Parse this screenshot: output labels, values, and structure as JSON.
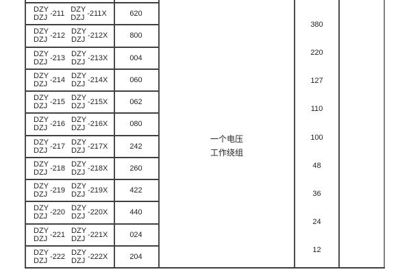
{
  "page": {
    "background_color": "#ffffff",
    "text_color": "#1f1f1f",
    "border_color": "#4a4a4a",
    "dark_rule_color": "#3c3c3c"
  },
  "table": {
    "model_rows": [
      {
        "brand_top": "DZY",
        "brand_bottom": "DZJ",
        "code": "-211",
        "code_x": "-211X",
        "value": "620"
      },
      {
        "brand_top": "DZY",
        "brand_bottom": "DZJ",
        "code": "-212",
        "code_x": "-212X",
        "value": "800"
      },
      {
        "brand_top": "DZY",
        "brand_bottom": "DZJ",
        "code": "-213",
        "code_x": "-213X",
        "value": "004"
      },
      {
        "brand_top": "DZY",
        "brand_bottom": "DZJ",
        "code": "-214",
        "code_x": "-214X",
        "value": "060"
      },
      {
        "brand_top": "DZY",
        "brand_bottom": "DZJ",
        "code": "-215",
        "code_x": "-215X",
        "value": "062"
      },
      {
        "brand_top": "DZY",
        "brand_bottom": "DZJ",
        "code": "-216",
        "code_x": "-216X",
        "value": "080"
      },
      {
        "brand_top": "DZY",
        "brand_bottom": "DZJ",
        "code": "-217",
        "code_x": "-217X",
        "value": "242"
      },
      {
        "brand_top": "DZY",
        "brand_bottom": "DZJ",
        "code": "-218",
        "code_x": "-218X",
        "value": "260"
      },
      {
        "brand_top": "DZY",
        "brand_bottom": "DZJ",
        "code": "-219",
        "code_x": "-219X",
        "value": "422"
      },
      {
        "brand_top": "DZY",
        "brand_bottom": "DZJ",
        "code": "-220",
        "code_x": "-220X",
        "value": "440"
      },
      {
        "brand_top": "DZY",
        "brand_bottom": "DZJ",
        "code": "-221",
        "code_x": "-221X",
        "value": "024"
      },
      {
        "brand_top": "DZY",
        "brand_bottom": "DZJ",
        "code": "-222",
        "code_x": "-222X",
        "value": "204"
      }
    ],
    "winding_note": {
      "line1": "一个电压",
      "line2": "工作绕组"
    },
    "voltage_values": [
      "380",
      "220",
      "127",
      "110",
      "100",
      "48",
      "36",
      "24",
      "12"
    ]
  }
}
